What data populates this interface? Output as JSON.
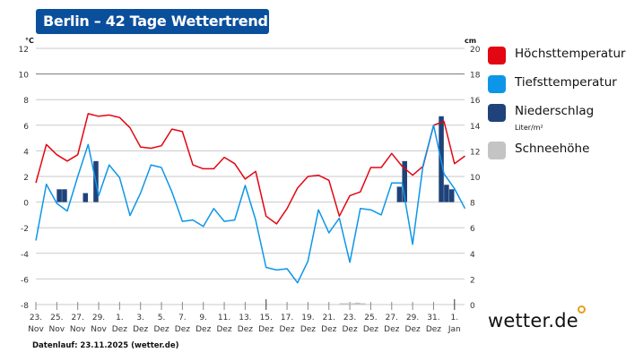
{
  "header": {
    "title": "Berlin – 42 Tage Wettertrend"
  },
  "legend": [
    {
      "label": "Höchsttemperatur",
      "color": "#e30613"
    },
    {
      "label": "Tiefsttemperatur",
      "color": "#0d96e8"
    },
    {
      "label": "Niederschlag",
      "sub": "Liter/m²",
      "color": "#1f427a"
    },
    {
      "label": "Schneehöhe",
      "color": "#c4c4c4"
    }
  ],
  "footer": {
    "text": "Datenlauf: 23.11.2025 (wetter.de)"
  },
  "logo": {
    "text": "wetter.de"
  },
  "chart_data": {
    "type": "line",
    "title": "",
    "left_axis": {
      "unit": "°C",
      "range": [
        -8,
        12
      ],
      "ticks": [
        12,
        10,
        8,
        6,
        4,
        2,
        0,
        -2,
        -4,
        -6,
        -8
      ]
    },
    "right_axis": {
      "unit": "cm",
      "range": [
        0,
        20
      ],
      "ticks": [
        20,
        18,
        16,
        14,
        12,
        10,
        8,
        6,
        4,
        2,
        0
      ]
    },
    "grid": true,
    "legend_placement": "right",
    "x_ticks": [
      [
        "23.",
        "Nov"
      ],
      [
        "25.",
        "Nov"
      ],
      [
        "27.",
        "Nov"
      ],
      [
        "29.",
        "Nov"
      ],
      [
        "1.",
        "Dez"
      ],
      [
        "3.",
        "Dez"
      ],
      [
        "5.",
        "Dez"
      ],
      [
        "7.",
        "Dez"
      ],
      [
        "9.",
        "Dez"
      ],
      [
        "11.",
        "Dez"
      ],
      [
        "13.",
        "Dez"
      ],
      [
        "15.",
        "Dez"
      ],
      [
        "17.",
        "Dez"
      ],
      [
        "19.",
        "Dez"
      ],
      [
        "21.",
        "Dez"
      ],
      [
        "23.",
        "Dez"
      ],
      [
        "25.",
        "Dez"
      ],
      [
        "27.",
        "Dez"
      ],
      [
        "29.",
        "Dez"
      ],
      [
        "31.",
        "Dez"
      ],
      [
        "1.",
        "Jan"
      ]
    ],
    "series": [
      {
        "name": "Höchsttemperatur",
        "color": "#e30613",
        "values": [
          1.5,
          4.5,
          3.7,
          3.2,
          3.7,
          6.9,
          6.7,
          6.8,
          6.6,
          5.8,
          4.3,
          4.2,
          4.4,
          5.7,
          5.5,
          2.9,
          2.6,
          2.6,
          3.5,
          3.0,
          1.8,
          2.4,
          -1.1,
          -1.7,
          -0.5,
          1.1,
          2.0,
          2.1,
          1.7,
          -1.1,
          0.5,
          0.8,
          2.7,
          2.7,
          3.8,
          2.8,
          2.1,
          2.8,
          6.0,
          6.3,
          3.0,
          3.6
        ]
      },
      {
        "name": "Tiefsttemperatur",
        "color": "#0d96e8",
        "values": [
          -3.0,
          1.4,
          -0.1,
          -0.7,
          2.0,
          4.5,
          0.5,
          2.9,
          1.9,
          -1.05,
          0.7,
          2.9,
          2.7,
          0.8,
          -1.5,
          -1.4,
          -1.9,
          -0.5,
          -1.5,
          -1.4,
          1.3,
          -1.4,
          -5.1,
          -5.3,
          -5.2,
          -6.3,
          -4.6,
          -0.6,
          -2.4,
          -1.25,
          -4.7,
          -0.5,
          -0.6,
          -1.0,
          1.5,
          1.5,
          -3.3,
          2.9,
          6.0,
          2.2,
          1.05,
          -0.5
        ]
      }
    ],
    "precipitation_half_days": {
      "name": "Niederschlag",
      "color": "#1f427a",
      "values": {
        "4": 1.0,
        "5": 1.0,
        "9": 0.7,
        "11": 3.2,
        "69": 1.2,
        "70": 3.2,
        "77": 6.7,
        "78": 1.35,
        "79": 1.0
      }
    },
    "snow_half_days": {
      "name": "Schneehöhe",
      "color": "#c4c4c4",
      "values": {
        "58": 0.1,
        "59": 0.1,
        "60": 0.1,
        "61": 0.15,
        "62": 0.1
      }
    }
  }
}
